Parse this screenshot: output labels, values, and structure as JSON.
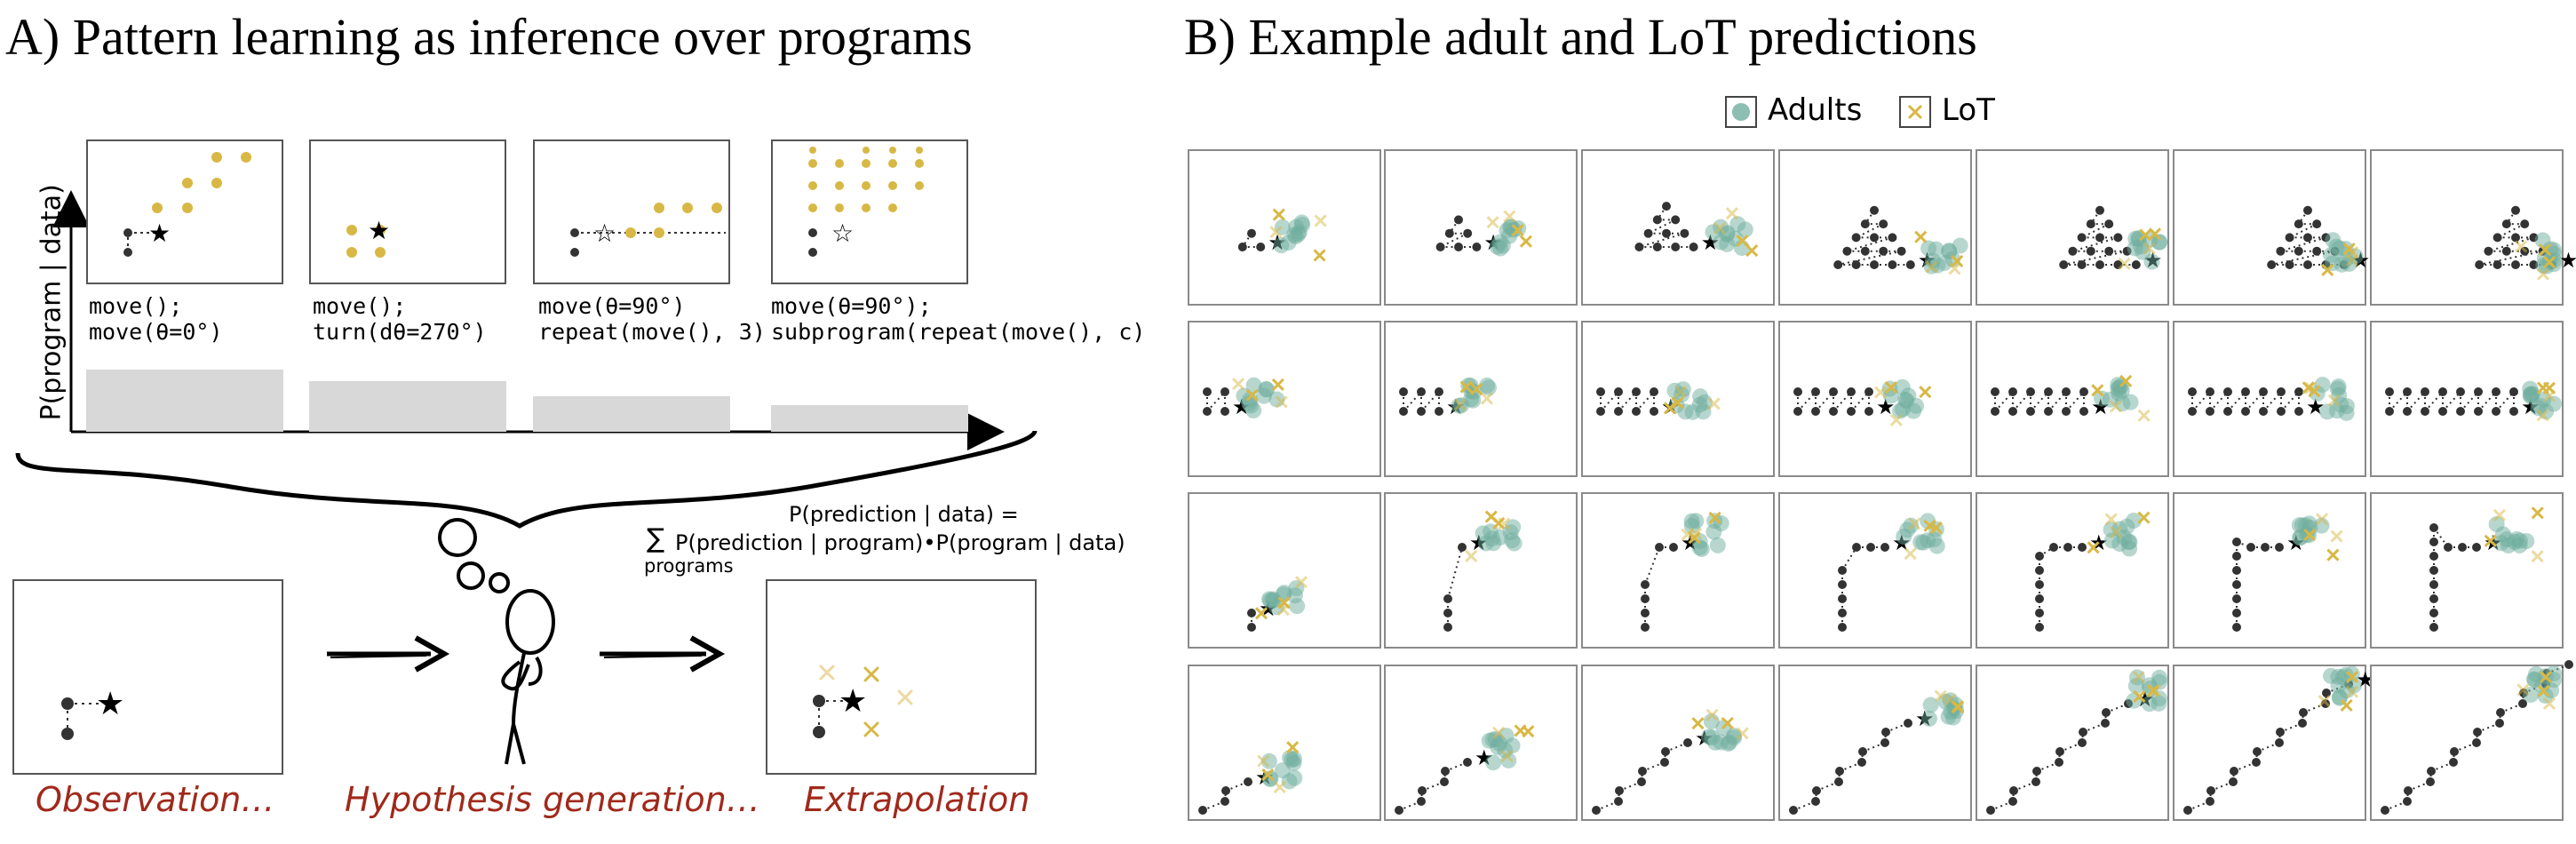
{
  "panelA": {
    "title": "A) Pattern learning as inference over programs",
    "ylabel": "P(program | data)",
    "programs": [
      {
        "line1": "move();",
        "line2": "move(θ=0°)",
        "prob": 0.87
      },
      {
        "line1": "move();",
        "line2": "turn(dθ=270°)",
        "prob": 0.71
      },
      {
        "line1": "move(θ=90°)",
        "line2": "repeat(move(), 3)",
        "prob": 0.5
      },
      {
        "line1": "move(θ=90°);",
        "line2": "subprogram(repeat(move(), c)",
        "prob": 0.37
      }
    ],
    "formula_top": "P(prediction | data) =",
    "formula_sigma": "∑",
    "formula_sub": "programs",
    "formula_bottom": "P(prediction | program)•P(program | data)",
    "caption_observation": "Observation…",
    "caption_hypothesis": "Hypothesis generation…",
    "caption_extrapolation": "Extrapolation"
  },
  "panelB": {
    "title": "B) Example adult and LoT predictions",
    "legend_adults": "Adults",
    "legend_lot": "LoT"
  },
  "colors": {
    "adults": "#6fae9e",
    "lot": "#d8b845",
    "caption": "#a0291b",
    "bar": "#d8d8d8",
    "dot": "#333333"
  },
  "icons": [
    "star-icon",
    "thought-bubble-icon",
    "arrow-right-icon",
    "thinking-person-icon"
  ]
}
